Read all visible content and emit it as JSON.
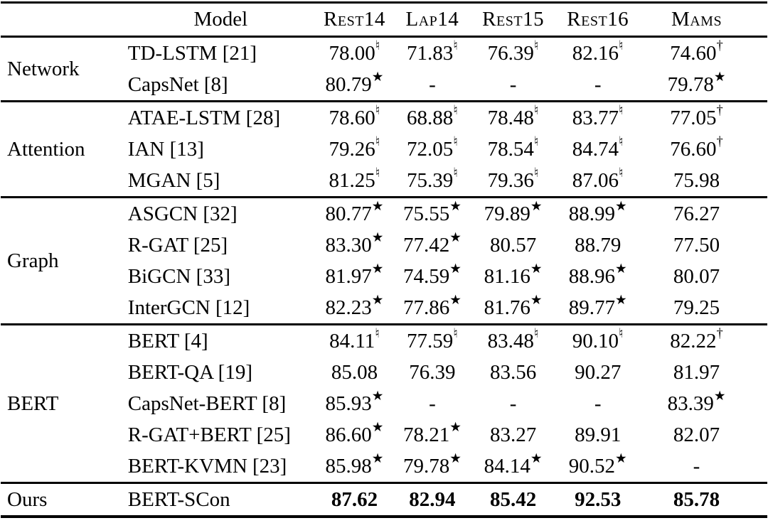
{
  "table": {
    "header": {
      "group_label": "",
      "model_label": "Model",
      "datasets": [
        "Rest14",
        "Lap14",
        "Rest15",
        "Rest16",
        "Mams"
      ]
    },
    "superscript_glyphs": {
      "natural": "♮",
      "star": "★",
      "dagger": "†"
    },
    "groups": [
      {
        "label": "Network",
        "rows": [
          {
            "model": "TD-LSTM [21]",
            "bold": false,
            "cells": [
              {
                "v": "78.00",
                "s": "natural"
              },
              {
                "v": "71.83",
                "s": "natural"
              },
              {
                "v": "76.39",
                "s": "natural"
              },
              {
                "v": "82.16",
                "s": "natural"
              },
              {
                "v": "74.60",
                "s": "dagger"
              }
            ]
          },
          {
            "model": "CapsNet [8]",
            "bold": false,
            "cells": [
              {
                "v": "80.79",
                "s": "star"
              },
              {
                "v": "-",
                "s": null
              },
              {
                "v": "-",
                "s": null
              },
              {
                "v": "-",
                "s": null
              },
              {
                "v": "79.78",
                "s": "star"
              }
            ]
          }
        ]
      },
      {
        "label": "Attention",
        "rows": [
          {
            "model": "ATAE-LSTM [28]",
            "bold": false,
            "cells": [
              {
                "v": "78.60",
                "s": "natural"
              },
              {
                "v": "68.88",
                "s": "natural"
              },
              {
                "v": "78.48",
                "s": "natural"
              },
              {
                "v": "83.77",
                "s": "natural"
              },
              {
                "v": "77.05",
                "s": "dagger"
              }
            ]
          },
          {
            "model": "IAN [13]",
            "bold": false,
            "cells": [
              {
                "v": "79.26",
                "s": "natural"
              },
              {
                "v": "72.05",
                "s": "natural"
              },
              {
                "v": "78.54",
                "s": "natural"
              },
              {
                "v": "84.74",
                "s": "natural"
              },
              {
                "v": "76.60",
                "s": "dagger"
              }
            ]
          },
          {
            "model": "MGAN [5]",
            "bold": false,
            "cells": [
              {
                "v": "81.25",
                "s": "natural"
              },
              {
                "v": "75.39",
                "s": "natural"
              },
              {
                "v": "79.36",
                "s": "natural"
              },
              {
                "v": "87.06",
                "s": "natural"
              },
              {
                "v": "75.98",
                "s": null
              }
            ]
          }
        ]
      },
      {
        "label": "Graph",
        "rows": [
          {
            "model": "ASGCN [32]",
            "bold": false,
            "cells": [
              {
                "v": "80.77",
                "s": "star"
              },
              {
                "v": "75.55",
                "s": "star"
              },
              {
                "v": "79.89",
                "s": "star"
              },
              {
                "v": "88.99",
                "s": "star"
              },
              {
                "v": "76.27",
                "s": null
              }
            ]
          },
          {
            "model": "R-GAT [25]",
            "bold": false,
            "cells": [
              {
                "v": "83.30",
                "s": "star"
              },
              {
                "v": "77.42",
                "s": "star"
              },
              {
                "v": "80.57",
                "s": null
              },
              {
                "v": "88.79",
                "s": null
              },
              {
                "v": "77.50",
                "s": null
              }
            ]
          },
          {
            "model": "BiGCN [33]",
            "bold": false,
            "cells": [
              {
                "v": "81.97",
                "s": "star"
              },
              {
                "v": "74.59",
                "s": "star"
              },
              {
                "v": "81.16",
                "s": "star"
              },
              {
                "v": "88.96",
                "s": "star"
              },
              {
                "v": "80.07",
                "s": null
              }
            ]
          },
          {
            "model": "InterGCN [12]",
            "bold": false,
            "cells": [
              {
                "v": "82.23",
                "s": "star"
              },
              {
                "v": "77.86",
                "s": "star"
              },
              {
                "v": "81.76",
                "s": "star"
              },
              {
                "v": "89.77",
                "s": "star"
              },
              {
                "v": "79.25",
                "s": null
              }
            ]
          }
        ]
      },
      {
        "label": "BERT",
        "rows": [
          {
            "model": "BERT [4]",
            "bold": false,
            "cells": [
              {
                "v": "84.11",
                "s": "natural"
              },
              {
                "v": "77.59",
                "s": "natural"
              },
              {
                "v": "83.48",
                "s": "natural"
              },
              {
                "v": "90.10",
                "s": "natural"
              },
              {
                "v": "82.22",
                "s": "dagger"
              }
            ]
          },
          {
            "model": "BERT-QA [19]",
            "bold": false,
            "cells": [
              {
                "v": "85.08",
                "s": null
              },
              {
                "v": "76.39",
                "s": null
              },
              {
                "v": "83.56",
                "s": null
              },
              {
                "v": "90.27",
                "s": null
              },
              {
                "v": "81.97",
                "s": null
              }
            ]
          },
          {
            "model": "CapsNet-BERT [8]",
            "bold": false,
            "cells": [
              {
                "v": "85.93",
                "s": "star"
              },
              {
                "v": "-",
                "s": null
              },
              {
                "v": "-",
                "s": null
              },
              {
                "v": "-",
                "s": null
              },
              {
                "v": "83.39",
                "s": "star"
              }
            ]
          },
          {
            "model": "R-GAT+BERT [25]",
            "bold": false,
            "cells": [
              {
                "v": "86.60",
                "s": "star"
              },
              {
                "v": "78.21",
                "s": "star"
              },
              {
                "v": "83.27",
                "s": null
              },
              {
                "v": "89.91",
                "s": null
              },
              {
                "v": "82.07",
                "s": null
              }
            ]
          },
          {
            "model": "BERT-KVMN [23]",
            "bold": false,
            "cells": [
              {
                "v": "85.98",
                "s": "star"
              },
              {
                "v": "79.78",
                "s": "star"
              },
              {
                "v": "84.14",
                "s": "star"
              },
              {
                "v": "90.52",
                "s": "star"
              },
              {
                "v": "-",
                "s": null
              }
            ]
          }
        ]
      },
      {
        "label": "Ours",
        "rows": [
          {
            "model": "BERT-SCon",
            "bold": true,
            "cells": [
              {
                "v": "87.62",
                "s": null
              },
              {
                "v": "82.94",
                "s": null
              },
              {
                "v": "85.42",
                "s": null
              },
              {
                "v": "92.53",
                "s": null
              },
              {
                "v": "85.78",
                "s": null
              }
            ]
          }
        ]
      }
    ]
  }
}
